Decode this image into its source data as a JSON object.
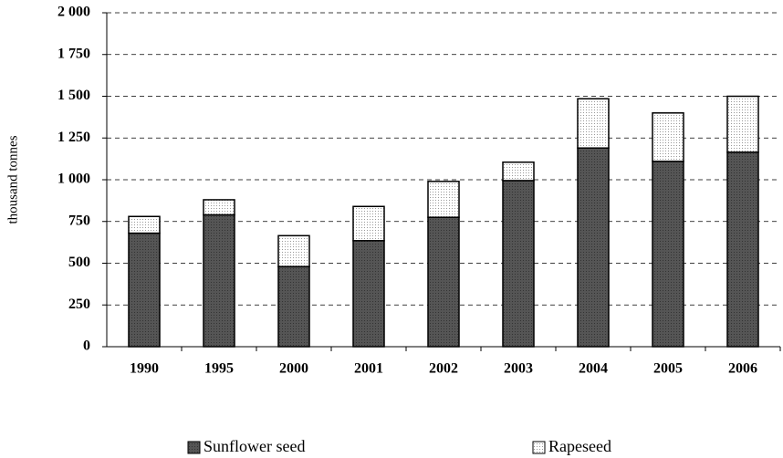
{
  "chart_data": {
    "type": "stacked_bar",
    "y_label": "thousand tonnes",
    "categories": [
      "1990",
      "1995",
      "2000",
      "2001",
      "2002",
      "2003",
      "2004",
      "2005",
      "2006"
    ],
    "series": [
      {
        "name": "Sunflower seed",
        "color": "#555555",
        "values": [
          680,
          790,
          480,
          635,
          775,
          995,
          1190,
          1110,
          1165
        ]
      },
      {
        "name": "Rapeseed",
        "color": "#ffffff",
        "values": [
          100,
          90,
          185,
          205,
          215,
          110,
          295,
          290,
          335
        ]
      }
    ],
    "ylim": [
      0,
      2000
    ],
    "yticks": [
      0,
      250,
      500,
      750,
      {
        "value": 1000,
        "label": "1 000"
      },
      {
        "value": 1250,
        "label": "1 250"
      },
      {
        "value": 1500,
        "label": "1 500"
      },
      {
        "value": 1750,
        "label": "1 750"
      },
      {
        "value": 2000,
        "label": "2 000"
      }
    ],
    "grid": true,
    "legend": "bottom"
  }
}
